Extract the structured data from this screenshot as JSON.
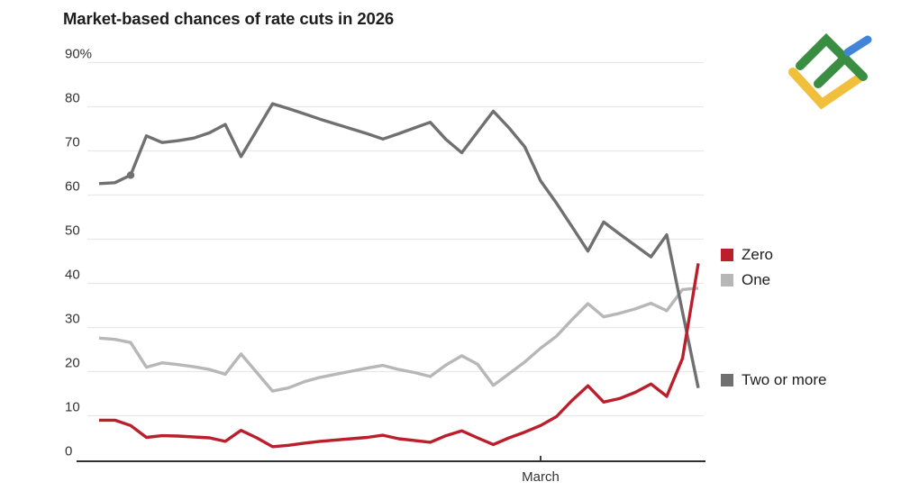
{
  "title": "Market-based chances of rate cuts in 2026",
  "chart_data": {
    "type": "line",
    "title": "Market-based chances of rate cuts in 2026",
    "xlabel": "",
    "ylabel": "",
    "ylim": [
      0,
      90
    ],
    "yticks": [
      0,
      10,
      20,
      30,
      40,
      50,
      60,
      70,
      80,
      90
    ],
    "ytick_top_suffix": "%",
    "grid": "horizontal",
    "legend_position": "right-of-plot, aligned to line ends",
    "x_axis": {
      "label": "March",
      "tick_index": 28,
      "points_total": 39
    },
    "draw_order": [
      1,
      2,
      0
    ],
    "series": [
      {
        "name": "Zero",
        "color": "#bb1f2c",
        "values": [
          9.0,
          9.0,
          7.8,
          5.1,
          5.5,
          5.4,
          5.2,
          5.0,
          4.2,
          6.7,
          5.0,
          3.0,
          3.3,
          3.8,
          4.2,
          4.5,
          4.8,
          5.1,
          5.6,
          4.8,
          4.4,
          4.0,
          5.5,
          6.6,
          5.0,
          3.5,
          5.0,
          6.3,
          7.8,
          9.8,
          13.5,
          16.8,
          13.1,
          13.9,
          15.3,
          17.2,
          14.4,
          23.0,
          44.5
        ]
      },
      {
        "name": "One",
        "color": "#b7b7b7",
        "values": [
          27.6,
          27.3,
          26.6,
          21.0,
          22.0,
          21.6,
          21.1,
          20.5,
          19.4,
          24.0,
          19.8,
          15.6,
          16.3,
          17.7,
          18.7,
          19.4,
          20.1,
          20.8,
          21.4,
          20.5,
          19.8,
          18.9,
          21.5,
          23.6,
          21.7,
          16.9,
          19.5,
          22.2,
          25.3,
          28.0,
          31.8,
          35.4,
          32.4,
          33.2,
          34.2,
          35.5,
          33.8,
          38.6,
          38.9
        ]
      },
      {
        "name": "Two or more",
        "color": "#707070",
        "values": [
          62.6,
          62.8,
          64.5,
          73.4,
          71.9,
          72.3,
          72.9,
          74.1,
          76.0,
          68.7,
          74.7,
          80.7,
          79.6,
          78.4,
          77.2,
          76.1,
          75.0,
          73.9,
          72.7,
          73.9,
          75.2,
          76.5,
          72.6,
          69.6,
          74.3,
          79.0,
          75.2,
          70.9,
          63.2,
          58.2,
          52.8,
          47.3,
          53.9,
          51.2,
          48.6,
          46.0,
          51.0,
          33.5,
          16.3
        ]
      }
    ],
    "marker": {
      "series_index": 2,
      "point_index": 2
    }
  },
  "colors": {
    "grid": "#e8e8e8",
    "axis": "#2f2f2f",
    "tick_text": "#333333",
    "title_text": "#1d1d1d"
  },
  "logo": {
    "name": "litefinance-logo",
    "colors": {
      "green": "#3a8e41",
      "blue": "#4285d8",
      "yellow": "#f0c03d"
    }
  }
}
